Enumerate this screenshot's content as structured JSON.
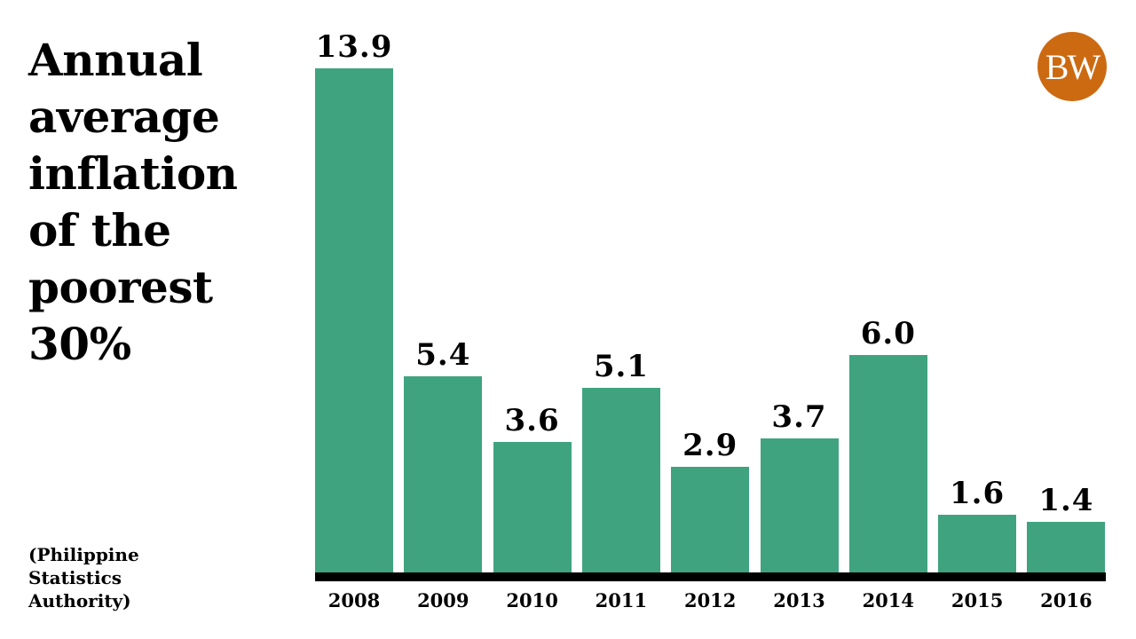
{
  "title": "Annual average inflation of the poorest 30%",
  "title_lines": [
    "Annual",
    "average",
    "inflation",
    "of the",
    "poorest",
    "30%"
  ],
  "source_lines": [
    "(Philippine",
    "Statistics",
    "Authority)"
  ],
  "logo": {
    "text": "BW",
    "color": "#cc6a12"
  },
  "colors": {
    "bar": "#3fa37f",
    "axis": "#000000",
    "background": "#ffffff"
  },
  "chart_data": {
    "type": "bar",
    "title": "Annual average inflation of the poorest 30%",
    "xlabel": "",
    "ylabel": "",
    "categories": [
      "2008",
      "2009",
      "2010",
      "2011",
      "2012",
      "2013",
      "2014",
      "2015",
      "2016"
    ],
    "values": [
      13.9,
      5.4,
      3.6,
      5.1,
      2.9,
      3.7,
      6.0,
      1.6,
      1.4
    ],
    "value_labels": [
      "13.9",
      "5.4",
      "3.6",
      "5.1",
      "2.9",
      "3.7",
      "6.0",
      "1.6",
      "1.4"
    ],
    "ylim": [
      0,
      13.9
    ],
    "grid": false,
    "legend": null,
    "source": "(Philippine Statistics Authority)"
  }
}
